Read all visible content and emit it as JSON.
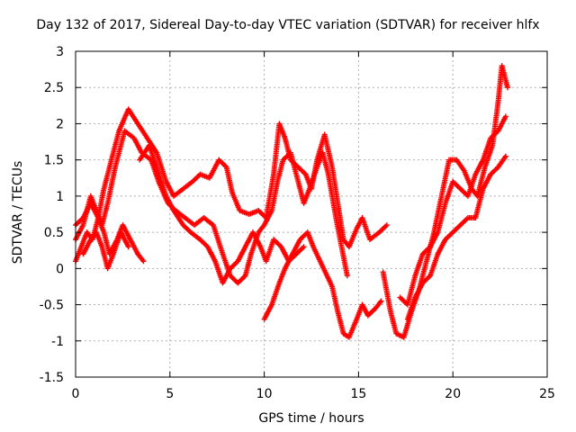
{
  "chart_data": {
    "type": "scatter",
    "title": "Day 132 of 2017, Sidereal Day-to-day VTEC variation (SDTVAR) for receiver hlfx",
    "xlabel": "GPS time / hours",
    "ylabel": "SDTVAR / TECUs",
    "xlim": [
      0,
      25
    ],
    "ylim": [
      -1.5,
      3
    ],
    "xticks": [
      "0",
      "5",
      "10",
      "15",
      "20",
      "25"
    ],
    "yticks": [
      "-1.5",
      "-1",
      "-0.5",
      "0",
      "0.5",
      "1",
      "1.5",
      "2",
      "2.5",
      "3"
    ],
    "grid": true,
    "marker": "plus",
    "colors": {
      "series": "#ff0000",
      "grid": "#b0b0b0"
    },
    "series": [
      {
        "points": [
          [
            0,
            0.6
          ],
          [
            0.4,
            0.7
          ],
          [
            0.8,
            0.9
          ],
          [
            1.2,
            0.7
          ],
          [
            1.5,
            1.1
          ],
          [
            1.9,
            1.5
          ],
          [
            2.3,
            1.9
          ],
          [
            2.8,
            2.2
          ],
          [
            3.3,
            2.0
          ],
          [
            3.8,
            1.8
          ],
          [
            4.3,
            1.6
          ],
          [
            4.8,
            1.2
          ],
          [
            5.2,
            1.0
          ],
          [
            5.7,
            1.1
          ],
          [
            6.2,
            1.2
          ],
          [
            6.6,
            1.3
          ],
          [
            7.1,
            1.25
          ],
          [
            7.6,
            1.5
          ],
          [
            8.0,
            1.4
          ],
          [
            8.3,
            1.05
          ],
          [
            8.7,
            0.8
          ],
          [
            9.2,
            0.75
          ],
          [
            9.7,
            0.8
          ],
          [
            10.1,
            0.7
          ],
          [
            10.5,
            1.3
          ],
          [
            10.8,
            2.0
          ],
          [
            11.1,
            1.8
          ],
          [
            11.4,
            1.5
          ],
          [
            11.8,
            1.4
          ],
          [
            12.2,
            1.3
          ],
          [
            12.5,
            1.1
          ],
          [
            12.8,
            1.5
          ],
          [
            13.2,
            1.85
          ],
          [
            13.6,
            1.4
          ],
          [
            13.9,
            0.9
          ],
          [
            14.2,
            0.4
          ],
          [
            14.5,
            0.3
          ],
          [
            14.9,
            0.55
          ],
          [
            15.2,
            0.7
          ],
          [
            15.6,
            0.4
          ],
          [
            16.1,
            0.5
          ],
          [
            16.5,
            0.6
          ]
        ]
      },
      {
        "points": [
          [
            0,
            0.4
          ],
          [
            0.4,
            0.6
          ],
          [
            0.8,
            1.0
          ],
          [
            1.1,
            0.8
          ],
          [
            1.4,
            0.6
          ],
          [
            1.7,
            0.9
          ],
          [
            2.1,
            1.4
          ],
          [
            2.6,
            1.9
          ],
          [
            3.1,
            1.8
          ],
          [
            3.5,
            1.6
          ],
          [
            4.0,
            1.5
          ],
          [
            4.4,
            1.2
          ],
          [
            4.9,
            0.9
          ],
          [
            5.3,
            0.8
          ],
          [
            5.8,
            0.7
          ],
          [
            6.3,
            0.6
          ],
          [
            6.8,
            0.7
          ],
          [
            7.3,
            0.6
          ],
          [
            7.8,
            0.2
          ],
          [
            8.2,
            -0.1
          ],
          [
            8.6,
            -0.2
          ],
          [
            9.0,
            -0.1
          ],
          [
            9.3,
            0.2
          ],
          [
            9.7,
            0.5
          ],
          [
            10.0,
            0.6
          ],
          [
            10.4,
            0.8
          ],
          [
            10.7,
            1.2
          ],
          [
            11.0,
            1.5
          ],
          [
            11.4,
            1.6
          ],
          [
            11.8,
            1.2
          ],
          [
            12.1,
            0.9
          ],
          [
            12.4,
            1.1
          ],
          [
            12.8,
            1.4
          ],
          [
            13.1,
            1.6
          ],
          [
            13.4,
            1.3
          ],
          [
            13.8,
            0.7
          ],
          [
            14.1,
            0.3
          ],
          [
            14.4,
            -0.1
          ]
        ]
      },
      {
        "points": [
          [
            0,
            0.1
          ],
          [
            0.3,
            0.3
          ],
          [
            0.6,
            0.5
          ],
          [
            0.9,
            0.4
          ],
          [
            1.2,
            0.7
          ],
          [
            1.5,
            0.5
          ],
          [
            1.8,
            0.2
          ],
          [
            2.2,
            0.4
          ],
          [
            2.5,
            0.6
          ],
          [
            2.9,
            0.4
          ],
          [
            3.3,
            0.2
          ],
          [
            3.6,
            0.1
          ],
          [
            3.4,
            1.5
          ],
          [
            3.9,
            1.7
          ],
          [
            4.3,
            1.4
          ],
          [
            4.8,
            1.0
          ],
          [
            5.2,
            0.8
          ],
          [
            5.7,
            0.6
          ],
          [
            6.1,
            0.5
          ],
          [
            6.6,
            0.4
          ],
          [
            7.0,
            0.3
          ],
          [
            7.4,
            0.1
          ],
          [
            7.8,
            -0.2
          ],
          [
            8.2,
            0.0
          ],
          [
            8.6,
            0.1
          ],
          [
            9.0,
            0.3
          ],
          [
            9.4,
            0.5
          ],
          [
            9.8,
            0.3
          ],
          [
            10.1,
            0.1
          ],
          [
            10.5,
            0.4
          ],
          [
            10.9,
            0.3
          ],
          [
            11.3,
            0.1
          ],
          [
            11.7,
            0.2
          ],
          [
            12.1,
            0.3
          ]
        ]
      },
      {
        "points": [
          [
            0.4,
            0.2
          ],
          [
            0.8,
            0.4
          ],
          [
            1.1,
            0.5
          ],
          [
            1.4,
            0.3
          ],
          [
            1.7,
            0.0
          ],
          [
            2.0,
            0.2
          ],
          [
            2.4,
            0.5
          ],
          [
            2.8,
            0.3
          ],
          [
            10.0,
            -0.7
          ],
          [
            10.4,
            -0.5
          ],
          [
            10.8,
            -0.2
          ],
          [
            11.1,
            0.0
          ],
          [
            11.5,
            0.2
          ],
          [
            11.9,
            0.4
          ],
          [
            12.3,
            0.5
          ],
          [
            12.6,
            0.3
          ],
          [
            13.6,
            -0.25
          ],
          [
            13.9,
            -0.6
          ],
          [
            14.2,
            -0.9
          ],
          [
            14.5,
            -0.95
          ],
          [
            14.9,
            -0.7
          ],
          [
            15.2,
            -0.5
          ],
          [
            15.5,
            -0.65
          ],
          [
            15.9,
            -0.55
          ],
          [
            16.2,
            -0.45
          ]
        ]
      },
      {
        "points": [
          [
            16.3,
            -0.05
          ],
          [
            16.7,
            -0.6
          ],
          [
            17.0,
            -0.9
          ],
          [
            17.4,
            -0.95
          ],
          [
            17.8,
            -0.6
          ],
          [
            18.2,
            -0.3
          ],
          [
            18.6,
            0.1
          ],
          [
            19.0,
            0.5
          ],
          [
            19.4,
            1.0
          ],
          [
            19.8,
            1.5
          ],
          [
            20.2,
            1.5
          ],
          [
            20.6,
            1.35
          ],
          [
            21.0,
            1.1
          ],
          [
            21.3,
            1.0
          ],
          [
            21.7,
            1.4
          ],
          [
            22.1,
            1.7
          ],
          [
            22.4,
            2.3
          ],
          [
            22.6,
            2.8
          ],
          [
            22.9,
            2.5
          ]
        ]
      },
      {
        "points": [
          [
            17.2,
            -0.4
          ],
          [
            17.6,
            -0.5
          ],
          [
            18.0,
            -0.1
          ],
          [
            18.4,
            0.2
          ],
          [
            18.8,
            0.3
          ],
          [
            19.2,
            0.5
          ],
          [
            19.6,
            0.9
          ],
          [
            20.0,
            1.2
          ],
          [
            20.4,
            1.1
          ],
          [
            20.8,
            1.0
          ],
          [
            21.2,
            1.3
          ],
          [
            21.6,
            1.5
          ],
          [
            22.0,
            1.8
          ],
          [
            22.4,
            1.9
          ],
          [
            22.8,
            2.1
          ]
        ]
      },
      {
        "points": [
          [
            17.6,
            -0.7
          ],
          [
            18.0,
            -0.4
          ],
          [
            18.4,
            -0.2
          ],
          [
            18.8,
            -0.1
          ],
          [
            19.2,
            0.2
          ],
          [
            19.6,
            0.4
          ],
          [
            20.0,
            0.5
          ],
          [
            20.4,
            0.6
          ],
          [
            20.8,
            0.7
          ],
          [
            21.2,
            0.7
          ],
          [
            21.6,
            1.1
          ],
          [
            22.0,
            1.3
          ],
          [
            22.4,
            1.4
          ],
          [
            22.8,
            1.55
          ]
        ]
      }
    ]
  }
}
